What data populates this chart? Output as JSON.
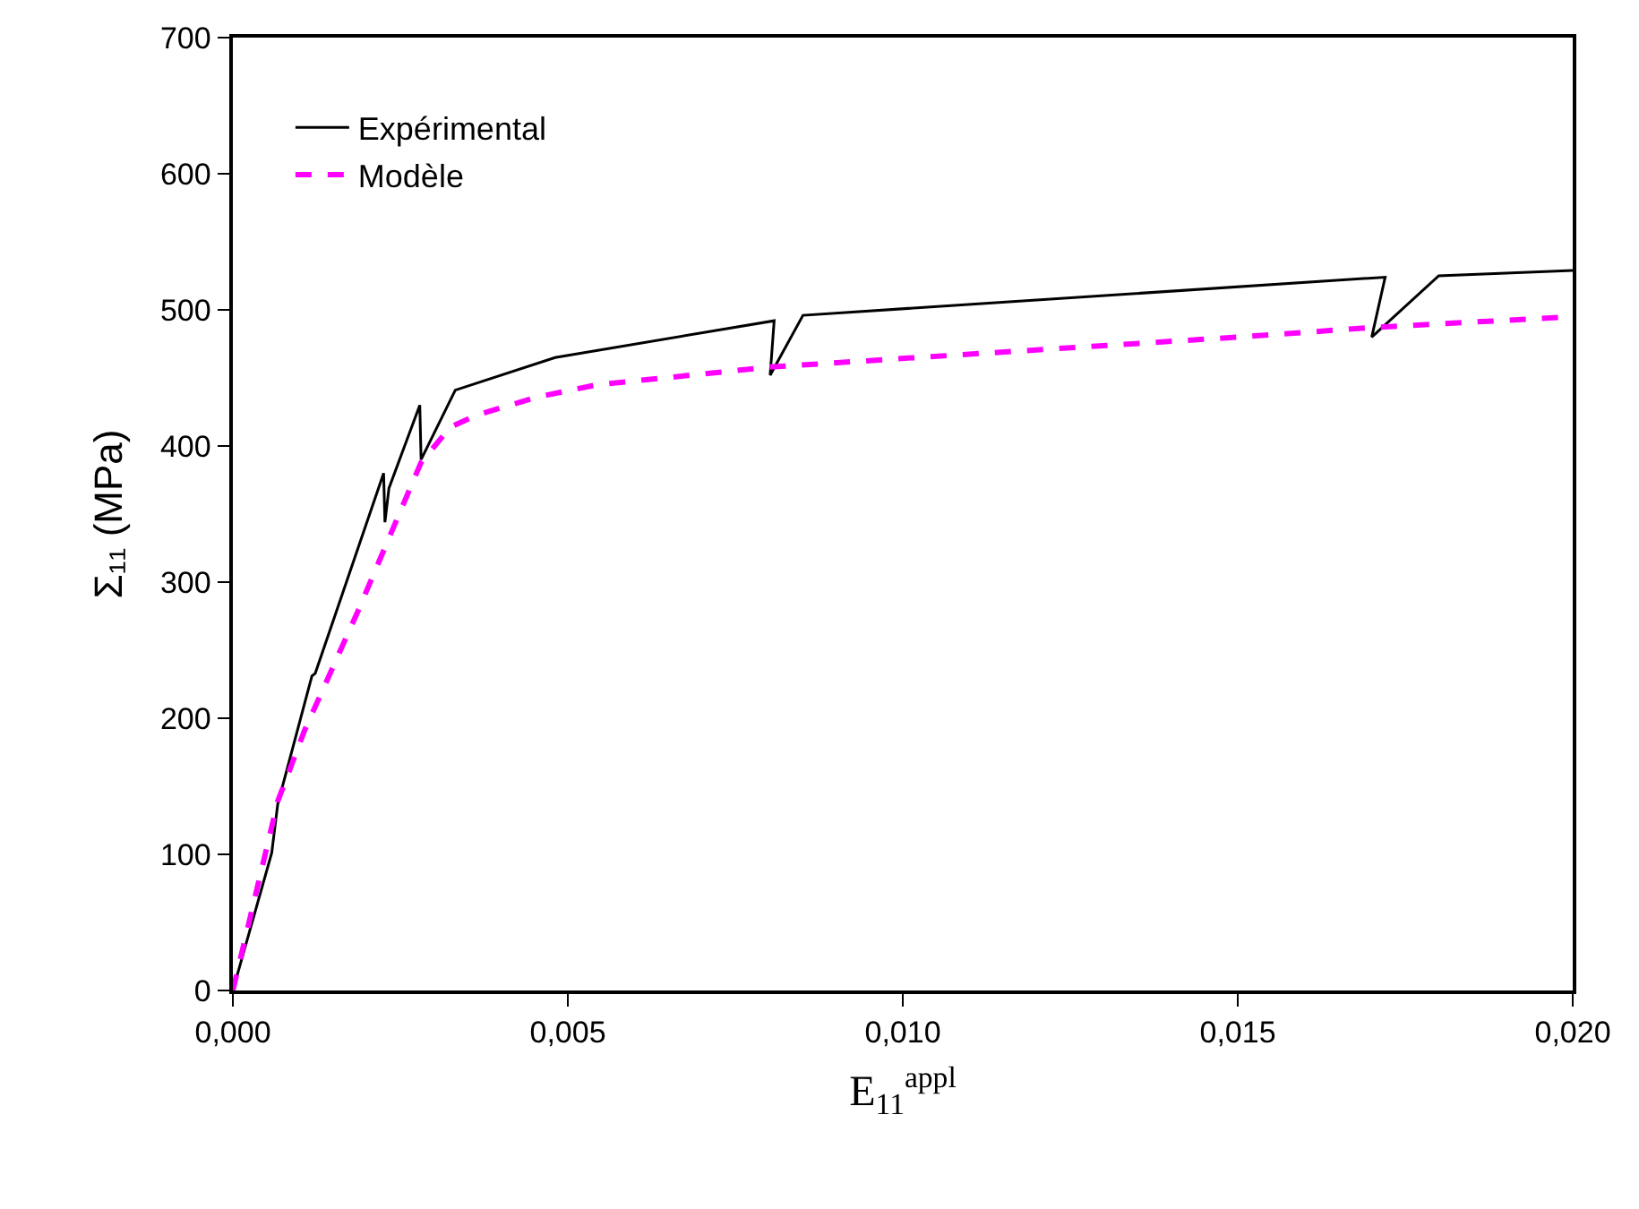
{
  "chart_data": {
    "type": "line",
    "xlabel": "E$_{11}$$^{appl}$",
    "ylabel": "Σ₁₁ (MPa)",
    "xlim": [
      0,
      0.02
    ],
    "xticks": [
      {
        "value": 0,
        "label": "0,000"
      },
      {
        "value": 0.005,
        "label": "0,005"
      },
      {
        "value": 0.01,
        "label": "0,010"
      },
      {
        "value": 0.015,
        "label": "0,015"
      },
      {
        "value": 0.02,
        "label": "0,020"
      }
    ],
    "ylim": [
      0,
      700
    ],
    "yticks": [
      0,
      100,
      200,
      300,
      400,
      500,
      600,
      700
    ],
    "legend": "top left",
    "marker": "none",
    "series": [
      {
        "name": "Expérimental",
        "color": "#000000",
        "line_style": "solid",
        "x": [
          0,
          0.00058,
          0.00067,
          0.00118,
          0.00123,
          0.00225,
          0.00227,
          0.00233,
          0.00279,
          0.00281,
          0.00332,
          0.00481,
          0.00808,
          0.00802,
          0.00851,
          0.0172,
          0.017,
          0.018,
          0.02
        ],
        "values": [
          0,
          101,
          137,
          231,
          233,
          380,
          344,
          369,
          430,
          390,
          441,
          465,
          492,
          452,
          496,
          524,
          480,
          525,
          529
        ]
      },
      {
        "name": "Modèle",
        "color": "#ff00ff",
        "line_style": "dashed",
        "x": [
          0,
          0.00067,
          0.00107,
          0.00187,
          0.00281,
          0.00325,
          0.00366,
          0.00455,
          0.00544,
          0.00802,
          0.0099,
          0.015,
          0.017,
          0.02
        ],
        "values": [
          0,
          139,
          191,
          279,
          388,
          414,
          423,
          436,
          445,
          458,
          464,
          480,
          487,
          495
        ]
      }
    ]
  }
}
